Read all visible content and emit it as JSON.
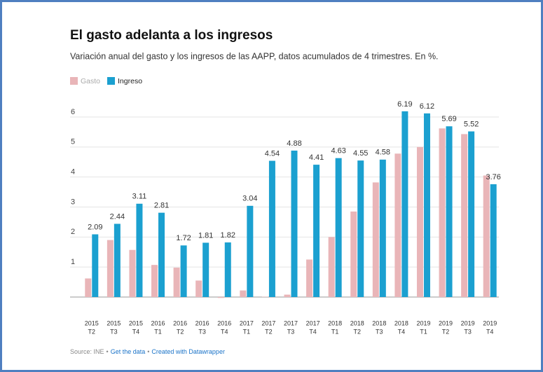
{
  "chart_data": {
    "type": "bar",
    "title": "El gasto adelanta a los ingresos",
    "subtitle": "Variación anual del gasto y los ingresos de las AAPP, datos acumulados de 4 trimestres. En %.",
    "categories": [
      [
        "2015",
        "T2"
      ],
      [
        "2015",
        "T3"
      ],
      [
        "2015",
        "T4"
      ],
      [
        "2016",
        "T1"
      ],
      [
        "2016",
        "T2"
      ],
      [
        "2016",
        "T3"
      ],
      [
        "2016",
        "T4"
      ],
      [
        "2017",
        "T1"
      ],
      [
        "2017",
        "T2"
      ],
      [
        "2017",
        "T3"
      ],
      [
        "2017",
        "T4"
      ],
      [
        "2018",
        "T1"
      ],
      [
        "2018",
        "T2"
      ],
      [
        "2018",
        "T3"
      ],
      [
        "2018",
        "T4"
      ],
      [
        "2019",
        "T1"
      ],
      [
        "2019",
        "T2"
      ],
      [
        "2019",
        "T3"
      ],
      [
        "2019",
        "T4"
      ]
    ],
    "series": [
      {
        "name": "Gasto",
        "color": "#e9b5b8",
        "values": [
          0.62,
          1.9,
          1.57,
          1.07,
          0.98,
          0.55,
          -0.03,
          0.22,
          0.01,
          0.08,
          1.25,
          2.0,
          2.85,
          3.82,
          4.78,
          5.0,
          5.62,
          5.43,
          4.05
        ]
      },
      {
        "name": "Ingreso",
        "color": "#1ba0d0",
        "values": [
          2.09,
          2.44,
          3.11,
          2.81,
          1.72,
          1.81,
          1.82,
          3.04,
          4.54,
          4.88,
          4.41,
          4.63,
          4.55,
          4.58,
          6.19,
          6.12,
          5.69,
          5.52,
          3.76
        ]
      }
    ],
    "ylim": [
      0,
      6.5
    ],
    "yticks": [
      1,
      2,
      3,
      4,
      5,
      6
    ],
    "grid": true,
    "footer": {
      "source": "Source: INE",
      "separator": "•",
      "links": [
        "Get the data",
        "Created with Datawrapper"
      ]
    }
  }
}
